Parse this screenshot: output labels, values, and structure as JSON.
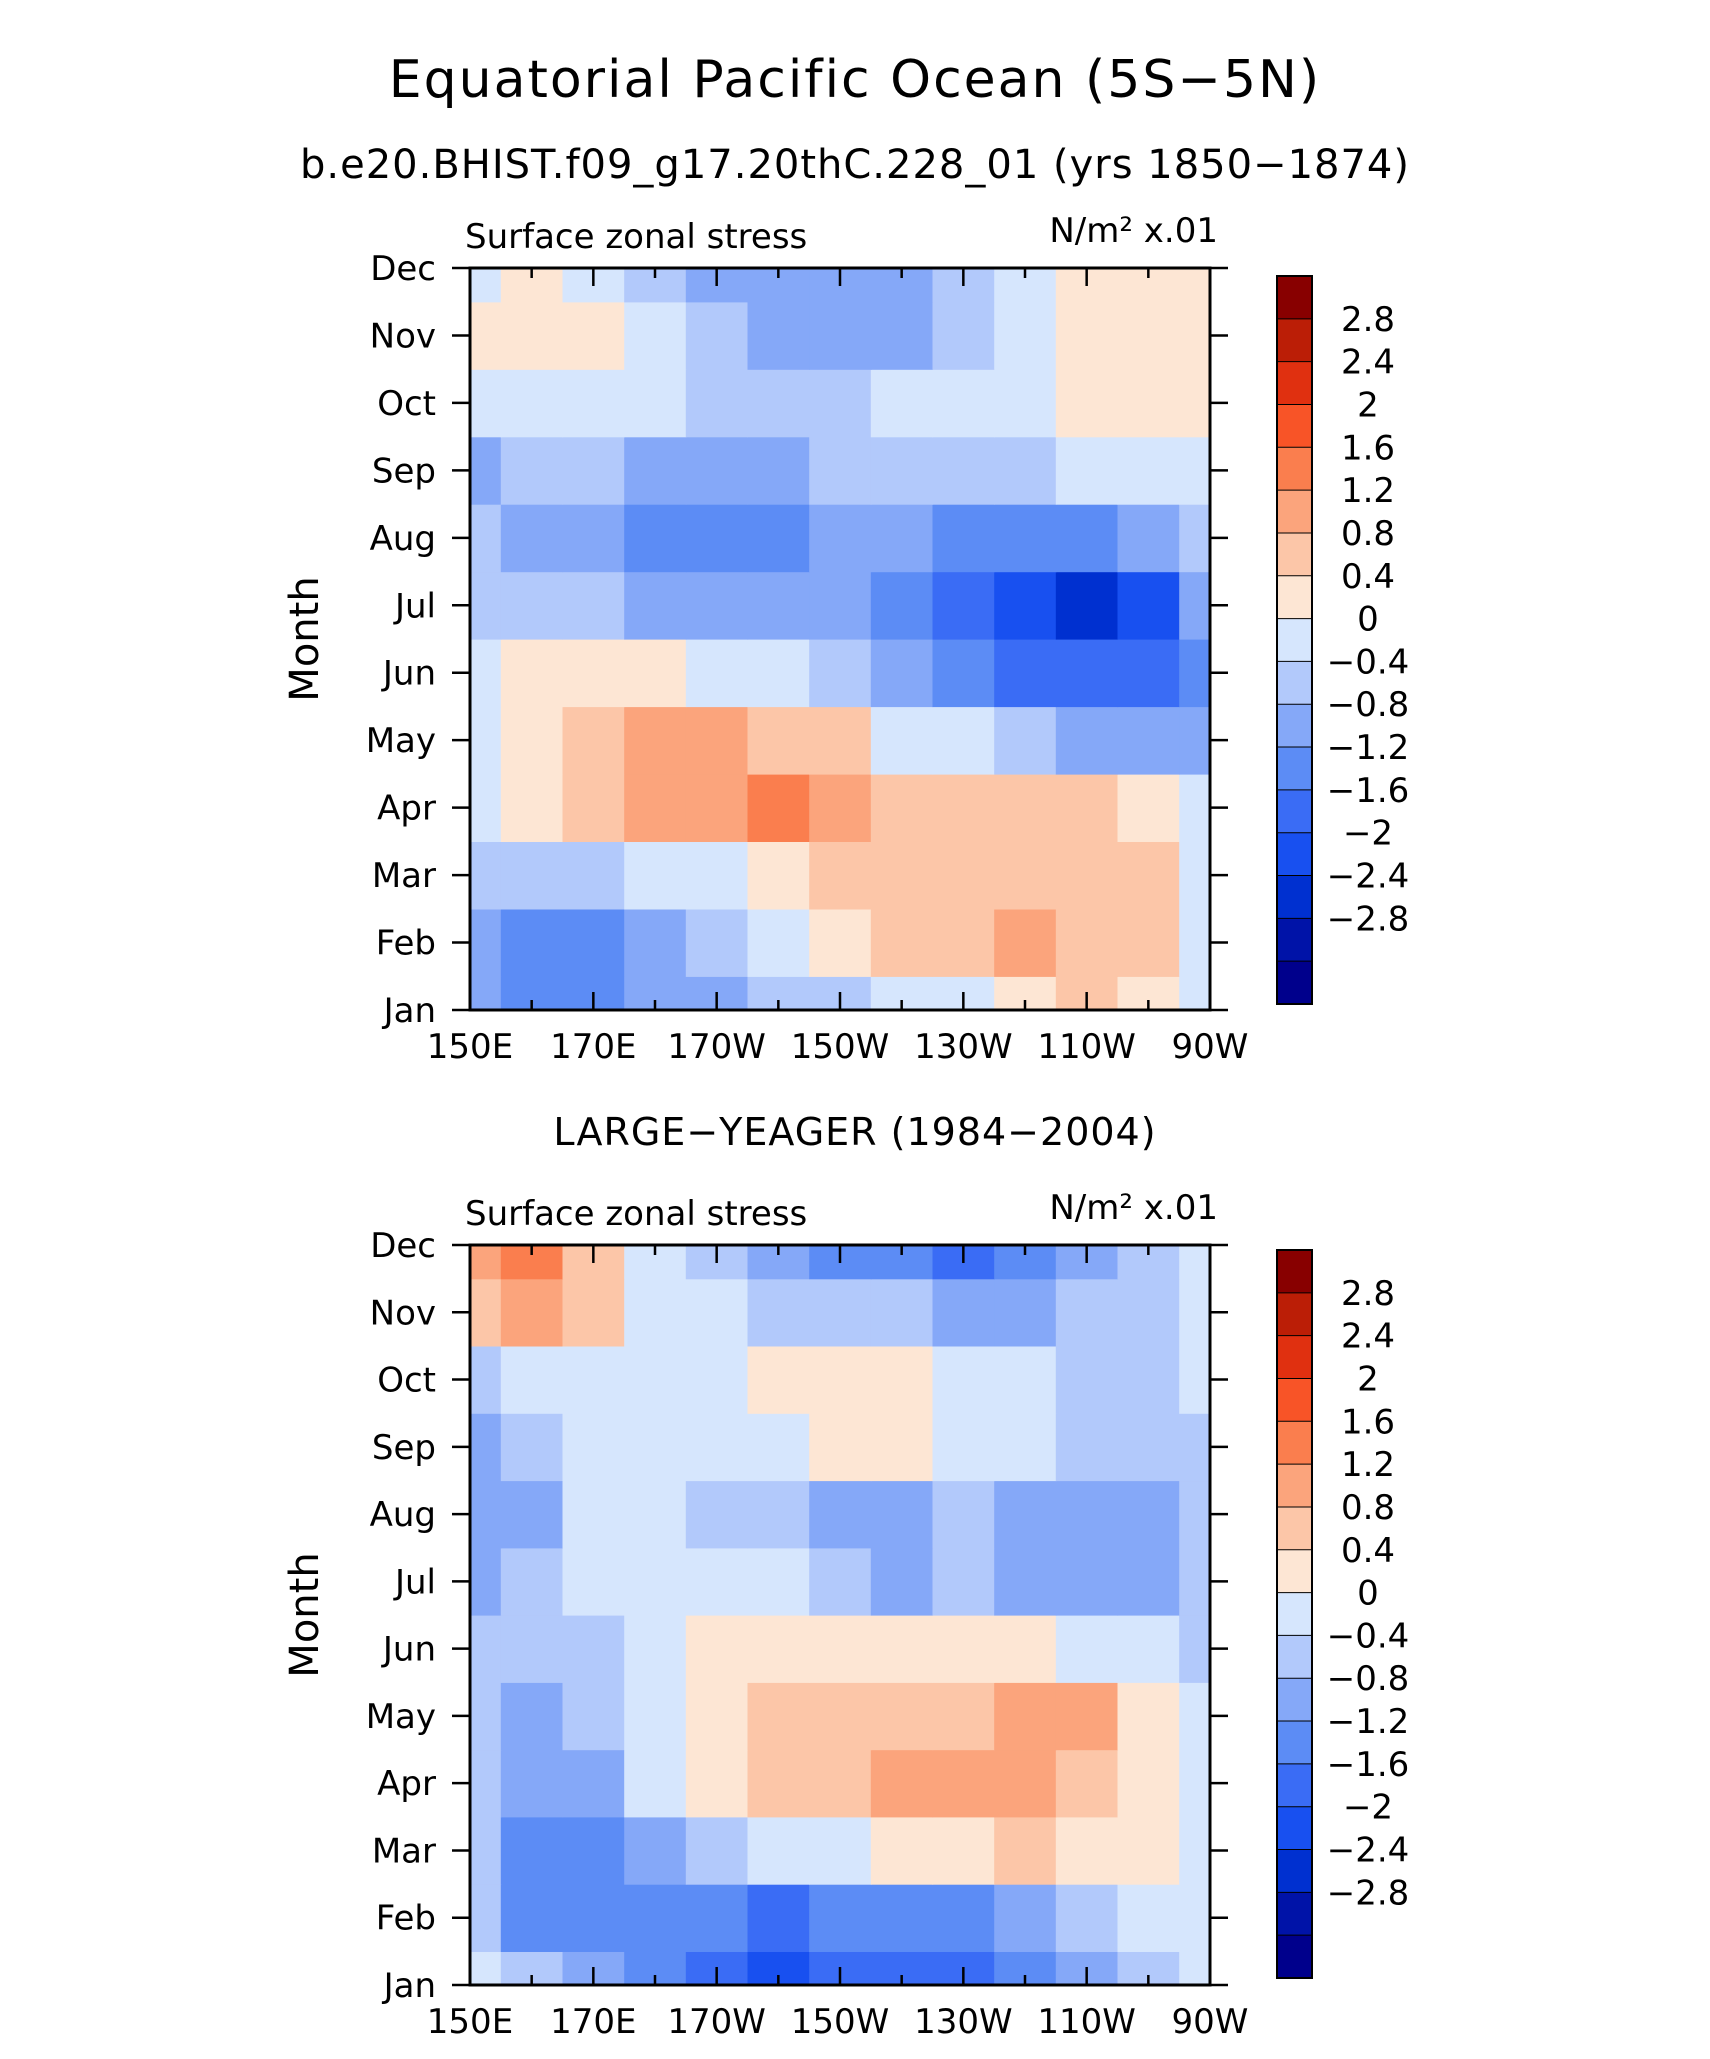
{
  "header": {
    "title": "Equatorial Pacific Ocean (5S−5N)",
    "subtitle": "b.e20.BHIST.f09_g17.20thC.228_01 (yrs 1850−1874)",
    "panel2_title": "LARGE−YEAGER (1984−2004)"
  },
  "colors": {
    "levels": [
      "#00008c",
      "#0013a8",
      "#0030d0",
      "#1850f0",
      "#3a6cf5",
      "#5c8cf5",
      "#85a8f8",
      "#b2c9fb",
      "#d6e6fd",
      "#fde6d4",
      "#fcc6a8",
      "#fba47c",
      "#fa7e4e",
      "#f85427",
      "#e03010",
      "#bb1e06",
      "#880000"
    ],
    "boundaries": [
      -2.8,
      -2.4,
      -2,
      -1.6,
      -1.2,
      -0.8,
      -0.4,
      0,
      0.4,
      0.8,
      1.2,
      1.6,
      2,
      2.4,
      2.8
    ]
  },
  "chart_data": [
    {
      "type": "heatmap",
      "title": "Surface zonal stress",
      "units": "N/m² x.01",
      "ylabel": "Month",
      "x_ticks": [
        "150E",
        "170E",
        "170W",
        "150W",
        "130W",
        "110W",
        "90W"
      ],
      "y_ticks": [
        "Jan",
        "Feb",
        "Mar",
        "Apr",
        "May",
        "Jun",
        "Jul",
        "Aug",
        "Sep",
        "Oct",
        "Nov",
        "Dec"
      ],
      "colorbar_labels": [
        "2.8",
        "2.4",
        "2",
        "1.6",
        "1.2",
        "0.8",
        "0.4",
        "0",
        "−0.4",
        "−0.8",
        "−1.2",
        "−1.6",
        "−2",
        "−2.4",
        "−2.8"
      ],
      "x_lon": [
        150,
        160,
        170,
        180,
        190,
        200,
        210,
        220,
        230,
        240,
        250,
        260,
        270
      ],
      "rows": [
        [
          -0.6,
          -0.9,
          -0.9,
          -0.8,
          -0.6,
          -0.4,
          -0.2,
          0.0,
          0.3,
          0.6,
          0.8,
          0.7,
          0.2
        ],
        [
          -0.5,
          -0.9,
          -1.0,
          -0.7,
          -0.3,
          0.1,
          0.5,
          0.8,
          1.1,
          1.3,
          1.0,
          0.9,
          0.3
        ],
        [
          -0.2,
          -0.4,
          -0.3,
          0.0,
          0.3,
          0.6,
          0.8,
          0.9,
          1.0,
          1.0,
          1.0,
          0.8,
          0.2
        ],
        [
          0.0,
          0.4,
          0.8,
          1.2,
          1.4,
          1.7,
          1.2,
          0.9,
          0.9,
          0.9,
          0.8,
          0.5,
          0.0
        ],
        [
          0.3,
          0.6,
          1.0,
          1.2,
          1.3,
          1.1,
          0.8,
          0.3,
          0.0,
          -0.3,
          -0.5,
          -0.6,
          -0.6
        ],
        [
          0.3,
          0.4,
          0.5,
          0.4,
          0.2,
          0.0,
          -0.3,
          -0.6,
          -1.0,
          -1.5,
          -1.6,
          -1.5,
          -0.9
        ],
        [
          -0.2,
          -0.3,
          -0.4,
          -0.6,
          -0.7,
          -0.8,
          -0.8,
          -1.0,
          -1.5,
          -1.9,
          -2.1,
          -1.8,
          -0.6
        ],
        [
          -0.4,
          -0.6,
          -0.8,
          -1.1,
          -1.2,
          -1.0,
          -0.6,
          -0.8,
          -1.0,
          -1.1,
          -1.0,
          -0.7,
          -0.3
        ],
        [
          -0.5,
          -0.4,
          -0.4,
          -0.6,
          -0.7,
          -0.6,
          -0.4,
          -0.3,
          -0.3,
          -0.2,
          0.0,
          0.2,
          0.3
        ],
        [
          0.2,
          0.1,
          0.1,
          0.0,
          -0.1,
          -0.2,
          -0.1,
          0.0,
          0.2,
          0.3,
          0.4,
          0.5,
          0.5
        ],
        [
          0.5,
          0.6,
          0.4,
          0.0,
          -0.4,
          -0.6,
          -0.7,
          -0.5,
          -0.2,
          0.2,
          0.4,
          0.6,
          0.6
        ],
        [
          0.3,
          0.4,
          0.1,
          -0.3,
          -0.6,
          -0.7,
          -0.7,
          -0.5,
          -0.1,
          0.2,
          0.4,
          0.6,
          0.6
        ]
      ]
    },
    {
      "type": "heatmap",
      "title": "Surface zonal stress",
      "units": "N/m² x.01",
      "ylabel": "Month",
      "x_ticks": [
        "150E",
        "170E",
        "170W",
        "150W",
        "130W",
        "110W",
        "90W"
      ],
      "y_ticks": [
        "Jan",
        "Feb",
        "Mar",
        "Apr",
        "May",
        "Jun",
        "Jul",
        "Aug",
        "Sep",
        "Oct",
        "Nov",
        "Dec"
      ],
      "colorbar_labels": [
        "2.8",
        "2.4",
        "2",
        "1.6",
        "1.2",
        "0.8",
        "0.4",
        "0",
        "−0.4",
        "−0.8",
        "−1.2",
        "−1.6",
        "−2",
        "−2.4",
        "−2.8"
      ],
      "x_lon": [
        150,
        160,
        170,
        180,
        190,
        200,
        210,
        220,
        230,
        240,
        250,
        260,
        270
      ],
      "rows": [
        [
          0.0,
          -0.4,
          -0.8,
          -1.0,
          -1.3,
          -1.7,
          -1.4,
          -1.5,
          -1.6,
          -1.2,
          -0.8,
          -0.4,
          0.1
        ],
        [
          -0.3,
          -0.9,
          -1.2,
          -0.9,
          -1.2,
          -1.3,
          -1.1,
          -1.2,
          -1.0,
          -0.7,
          -0.3,
          0.0,
          0.2
        ],
        [
          -0.2,
          -1.0,
          -1.2,
          -0.6,
          -0.3,
          0.0,
          0.2,
          0.4,
          0.6,
          0.8,
          0.6,
          0.4,
          0.1
        ],
        [
          -0.3,
          -0.8,
          -0.5,
          0.1,
          0.5,
          0.9,
          1.0,
          1.2,
          1.3,
          1.4,
          1.0,
          0.6,
          0.1
        ],
        [
          -0.3,
          -0.8,
          -0.4,
          0.1,
          0.4,
          0.8,
          0.9,
          1.0,
          1.1,
          1.2,
          1.2,
          0.6,
          0.0
        ],
        [
          -0.3,
          -0.4,
          -0.1,
          0.2,
          0.4,
          0.6,
          0.7,
          0.6,
          0.5,
          0.4,
          0.3,
          0.2,
          -0.1
        ],
        [
          -0.5,
          -0.4,
          0.1,
          0.2,
          0.2,
          0.0,
          -0.4,
          -0.5,
          -0.4,
          -0.7,
          -0.8,
          -0.7,
          -0.2
        ],
        [
          -0.8,
          -0.5,
          0.1,
          0.2,
          -0.2,
          -0.4,
          -0.6,
          -0.6,
          -0.4,
          -0.5,
          -0.7,
          -0.7,
          -0.3
        ],
        [
          -0.5,
          -0.3,
          0.1,
          0.2,
          0.2,
          0.3,
          0.4,
          0.5,
          0.3,
          0.0,
          -0.2,
          -0.3,
          -0.1
        ],
        [
          -0.1,
          0.1,
          0.3,
          0.1,
          0.2,
          0.4,
          0.5,
          0.4,
          0.3,
          0.1,
          -0.2,
          -0.3,
          0.2
        ],
        [
          0.8,
          1.2,
          0.8,
          0.2,
          0.0,
          -0.2,
          -0.3,
          -0.4,
          -0.5,
          -0.6,
          -0.3,
          -0.1,
          0.1
        ],
        [
          1.4,
          1.7,
          0.9,
          0.3,
          -0.2,
          -0.6,
          -0.9,
          -1.1,
          -1.3,
          -1.2,
          -0.5,
          -0.1,
          0.0
        ]
      ]
    }
  ]
}
